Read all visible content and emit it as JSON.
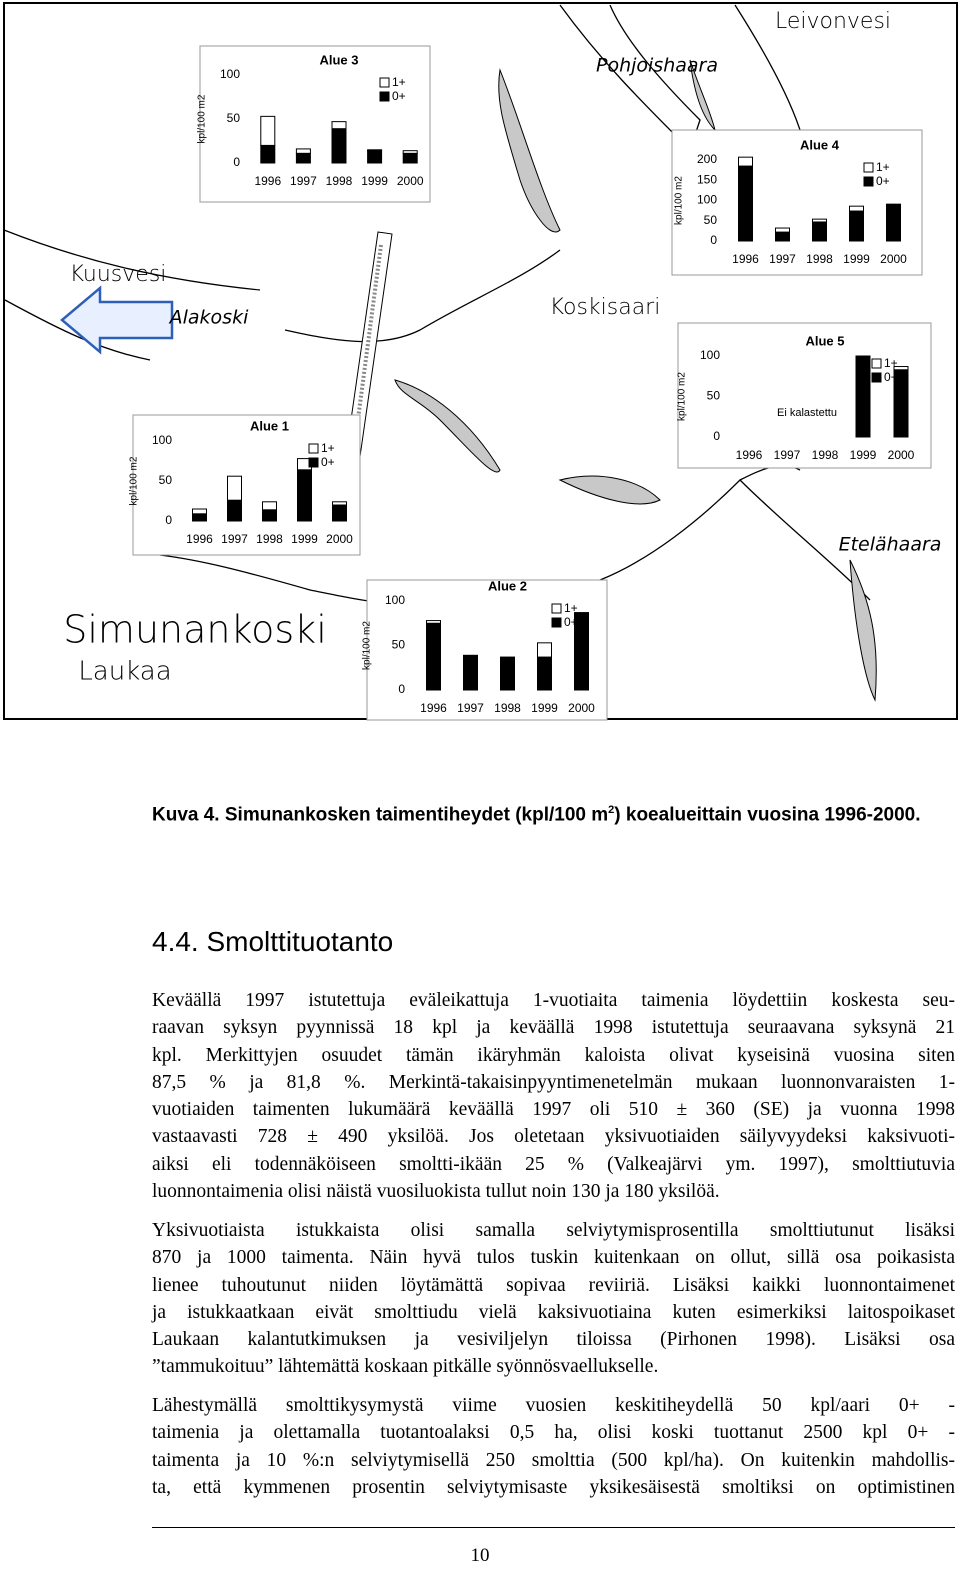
{
  "map_labels": {
    "leivonvesi": "Leivonvesi",
    "pohjoishaara": "Pohjoishaara",
    "kuusvesi": "Kuusvesi",
    "alakoski": "Alakoski",
    "koskisaari": "Koskisaari",
    "etelahaara": "Etelähaara",
    "simunankoski": "Simunankoski",
    "laukaa": "Laukaa"
  },
  "chart_data": [
    {
      "type": "bar",
      "stacked": true,
      "title": "Alue 3",
      "ylabel": "kpl/100 m2",
      "categories": [
        "1996",
        "1997",
        "1998",
        "1999",
        "2000"
      ],
      "series": [
        {
          "name": "0+",
          "color": "#000000",
          "values": [
            20,
            11,
            39,
            14,
            11
          ]
        },
        {
          "name": "1+",
          "color": "#ffffff",
          "values": [
            33,
            5,
            8,
            1,
            3
          ]
        }
      ],
      "ylim": [
        0,
        100
      ],
      "yticks": [
        0,
        50,
        100
      ]
    },
    {
      "type": "bar",
      "stacked": true,
      "title": "Alue 4",
      "ylabel": "kpl/100 m2",
      "categories": [
        "1996",
        "1997",
        "1998",
        "1999",
        "2000"
      ],
      "series": [
        {
          "name": "0+",
          "color": "#000000",
          "values": [
            185,
            22,
            47,
            74,
            91
          ]
        },
        {
          "name": "1+",
          "color": "#ffffff",
          "values": [
            22,
            10,
            7,
            12,
            0
          ]
        }
      ],
      "ylim": [
        0,
        200
      ],
      "yticks": [
        0,
        50,
        100,
        150,
        200
      ]
    },
    {
      "type": "bar",
      "stacked": true,
      "title": "Alue 5",
      "ylabel": "kpl/100 m2",
      "annotation": "Ei kalastettu",
      "categories": [
        "1996",
        "1997",
        "1998",
        "1999",
        "2000"
      ],
      "series": [
        {
          "name": "0+",
          "color": "#000000",
          "values": [
            null,
            null,
            null,
            100,
            83
          ]
        },
        {
          "name": "1+",
          "color": "#ffffff",
          "values": [
            null,
            null,
            null,
            0,
            4
          ]
        }
      ],
      "ylim": [
        0,
        100
      ],
      "yticks": [
        0,
        50,
        100
      ]
    },
    {
      "type": "bar",
      "stacked": true,
      "title": "Alue 1",
      "ylabel": "kpl/100 m2",
      "categories": [
        "1996",
        "1997",
        "1998",
        "1999",
        "2000"
      ],
      "series": [
        {
          "name": "0+",
          "color": "#000000",
          "values": [
            9,
            26,
            14,
            64,
            20
          ]
        },
        {
          "name": "1+",
          "color": "#ffffff",
          "values": [
            6,
            30,
            10,
            14,
            4
          ]
        }
      ],
      "ylim": [
        0,
        100
      ],
      "yticks": [
        0,
        50,
        100
      ]
    },
    {
      "type": "bar",
      "stacked": true,
      "title": "Alue 2",
      "ylabel": "kpl/100 m2",
      "categories": [
        "1996",
        "1997",
        "1998",
        "1999",
        "2000"
      ],
      "series": [
        {
          "name": "0+",
          "color": "#000000",
          "values": [
            75,
            39,
            37,
            37,
            87
          ]
        },
        {
          "name": "1+",
          "color": "#ffffff",
          "values": [
            3,
            0,
            0,
            16,
            0
          ]
        }
      ],
      "ylim": [
        0,
        100
      ],
      "yticks": [
        0,
        50,
        100
      ]
    }
  ],
  "caption": {
    "prefix": "Kuva 4. Simunankosken taimentiheydet (kpl/100 m",
    "sup": "2",
    "suffix": ") koealueittain vuosina 1996-2000."
  },
  "section": {
    "heading": "4.4. Smolttituotanto"
  },
  "paragraphs": [
    [
      "Keväällä 1997 istutettuja eväleikattuja 1-vuotiaita taimenia löydettiin koskesta seu-",
      "raavan syksyn pyynnissä 18 kpl ja keväällä 1998 istutettuja seuraavana syksynä 21",
      "kpl. Merkittyjen osuudet tämän ikäryhmän kaloista olivat kyseisinä vuosina siten",
      "87,5 % ja 81,8 %. Merkintä-takaisinpyyntimenetelmän mukaan luonnonvaraisten 1-",
      "vuotiaiden taimenten lukumäärä keväällä 1997 oli 510 ± 360 (SE) ja vuonna 1998",
      "vastaavasti 728 ± 490 yksilöä. Jos oletetaan yksivuotiaiden säilyvyydeksi kaksivuoti-",
      "aiksi eli todennäköiseen smoltti-ikään 25 % (Valkeajärvi ym. 1997), smolttiutuvia",
      "luonnontaimenia olisi näistä vuosiluokista tullut noin 130 ja 180 yksilöä."
    ],
    [
      "Yksivuotiaista istukkaista olisi samalla selviytymisprosentilla smolttiutunut lisäksi",
      "870 ja 1000 taimenta. Näin hyvä tulos tuskin kuitenkaan on ollut, sillä osa poikasista",
      "lienee tuhoutunut niiden löytämättä sopivaa reviiriä. Lisäksi kaikki luonnontaimenet",
      "ja istukkaatkaan eivät smolttiudu vielä kaksivuotiaina kuten esimerkiksi laitospoikaset",
      "Laukaan kalantutkimuksen ja vesiviljelyn tiloissa (Pirhonen 1998). Lisäksi osa",
      "”tammukoituu” lähtemättä koskaan pitkälle syönnösvaellukselle."
    ],
    [
      "Lähestymällä smolttikysymystä viime vuosien keskitiheydellä 50 kpl/aari 0+ -",
      "taimenia ja olettamalla tuotantoalaksi 0,5 ha, olisi koski tuottanut 2500 kpl 0+ -",
      "taimenta ja 10 %:n selviytymisellä 250 smolttia (500 kpl/ha). On kuitenkin mahdollis-",
      "ta, että kymmenen prosentin selviytymisaste yksikesäisestä smoltiksi on optimistinen"
    ]
  ],
  "page_number": "10"
}
